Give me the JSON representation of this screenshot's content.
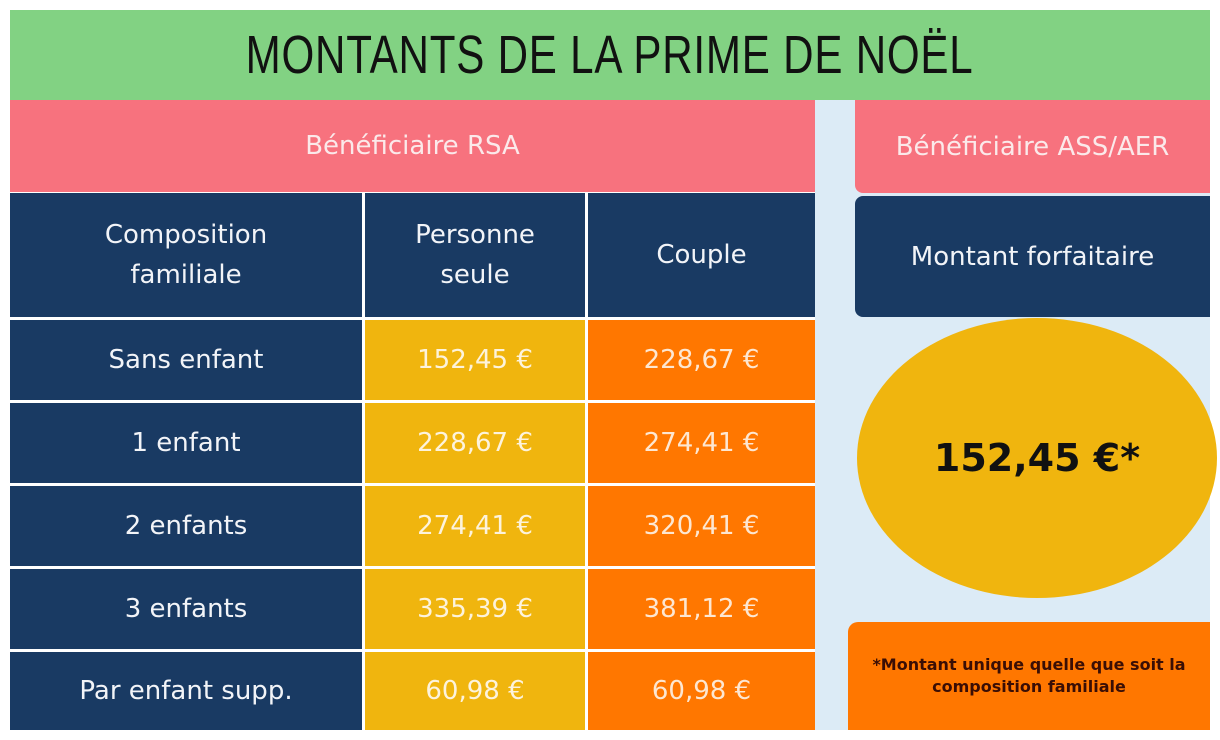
{
  "title": "MONTANTS DE LA PRIME DE NOËL",
  "rsa": {
    "header": "Bénéficiaire RSA",
    "columns": [
      "Composition familiale",
      "Personne seule",
      "Couple"
    ],
    "rows": [
      {
        "label": "Sans enfant",
        "single": "152,45 €",
        "couple": "228,67 €"
      },
      {
        "label": "1 enfant",
        "single": "228,67 €",
        "couple": "274,41 €"
      },
      {
        "label": "2 enfants",
        "single": "274,41 €",
        "couple": "320,41 €"
      },
      {
        "label": "3 enfants",
        "single": "335,39 €",
        "couple": "381,12 €"
      },
      {
        "label": "Par enfant supp.",
        "single": "60,98 €",
        "couple": "60,98 €"
      }
    ]
  },
  "ass": {
    "header": "Bénéficiaire ASS/AER",
    "subheader": "Montant forfaitaire",
    "amount": "152,45 €*",
    "note": "*Montant unique quelle que soit la composition familiale"
  },
  "colors": {
    "green": "#82d283",
    "pink": "#f7727e",
    "navy": "#193a63",
    "yellow": "#f0b50e",
    "orange": "#ff7700",
    "lightblue": "#dcebf6"
  }
}
